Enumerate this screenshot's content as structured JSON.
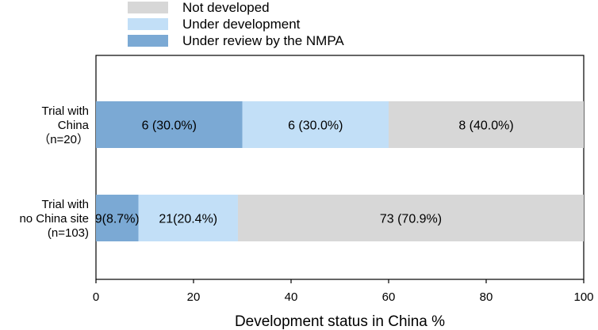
{
  "chart_data": {
    "type": "bar",
    "orientation": "horizontal",
    "stacked": true,
    "xlabel": "Development status in China %",
    "xlim": [
      0,
      100
    ],
    "xticks": [
      "0",
      "20",
      "40",
      "60",
      "80",
      "100"
    ],
    "categories": [
      {
        "lines": [
          "Trial with",
          "China",
          "（n=20）"
        ]
      },
      {
        "lines": [
          "Trial with",
          "no China site",
          "(n=103)"
        ]
      }
    ],
    "series": [
      {
        "name": "Under review by the NMPA",
        "color": "#7ba9d4",
        "values": [
          30.0,
          8.7
        ],
        "labels": [
          "6 (30.0%)",
          "9(8.7%)"
        ]
      },
      {
        "name": "Under development",
        "color": "#c2dff7",
        "values": [
          30.0,
          20.4
        ],
        "labels": [
          "6 (30.0%)",
          "21(20.4%)"
        ]
      },
      {
        "name": "Not developed",
        "color": "#d7d7d7",
        "values": [
          40.0,
          70.9
        ],
        "labels": [
          "8 (40.0%)",
          "73 (70.9%)"
        ]
      }
    ],
    "legend_order": [
      "Not developed",
      "Under development",
      "Under review by the NMPA"
    ],
    "legend_position": "top-center"
  }
}
